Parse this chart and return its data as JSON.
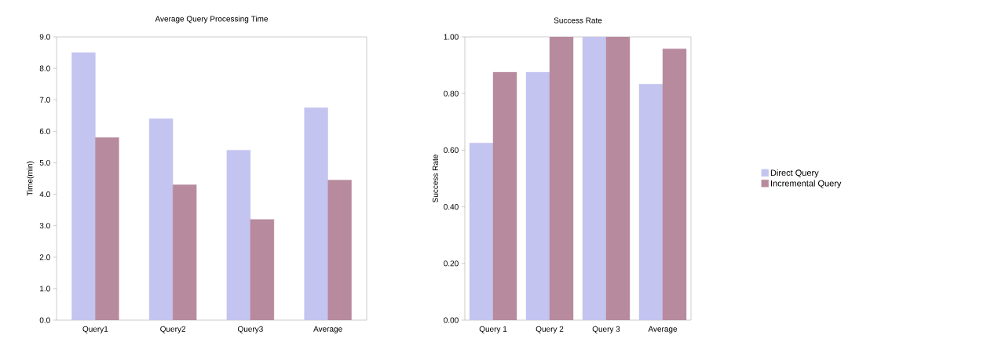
{
  "chart_data": [
    {
      "type": "bar",
      "title": "Average Query Processing Time",
      "ylabel": "Time(min)",
      "categories": [
        "Query1",
        "Query2",
        "Query3",
        "Average"
      ],
      "series": [
        {
          "color": "#c4c4f0",
          "values": [
            8.5,
            6.4,
            5.4,
            6.75
          ]
        },
        {
          "color": "#b88a9e",
          "values": [
            5.8,
            4.3,
            3.2,
            4.45
          ]
        }
      ],
      "ylim": [
        0,
        9
      ],
      "yticks": [
        {
          "value": 0,
          "label": "0.0"
        },
        {
          "value": 1,
          "label": "1.0"
        },
        {
          "value": 2,
          "label": "2.0"
        },
        {
          "value": 3,
          "label": "3.0"
        },
        {
          "value": 4,
          "label": "4.0"
        },
        {
          "value": 5,
          "label": "5.0"
        },
        {
          "value": 6,
          "label": "6.0"
        },
        {
          "value": 7,
          "label": "7.0"
        },
        {
          "value": 8,
          "label": "8.0"
        },
        {
          "value": 9,
          "label": "9.0"
        }
      ],
      "grid": false
    },
    {
      "type": "bar",
      "title": "Success Rate",
      "ylabel": "Success Rate",
      "categories": [
        "Query 1",
        "Query 2",
        "Query 3",
        "Average"
      ],
      "series": [
        {
          "name": "Direct Query",
          "color": "#c4c4f0",
          "values": [
            0.625,
            0.875,
            1.0,
            0.833
          ]
        },
        {
          "name": "Incremental Query",
          "color": "#b88a9e",
          "values": [
            0.875,
            1.0,
            1.0,
            0.958
          ]
        }
      ],
      "ylim": [
        0,
        1
      ],
      "yticks": [
        {
          "value": 0,
          "label": "0.00"
        },
        {
          "value": 0.2,
          "label": "0.20"
        },
        {
          "value": 0.4,
          "label": "0.40"
        },
        {
          "value": 0.6,
          "label": "0.60"
        },
        {
          "value": 0.8,
          "label": "0.80"
        },
        {
          "value": 1,
          "label": "1.00"
        }
      ],
      "grid": false,
      "legend": "right"
    }
  ]
}
